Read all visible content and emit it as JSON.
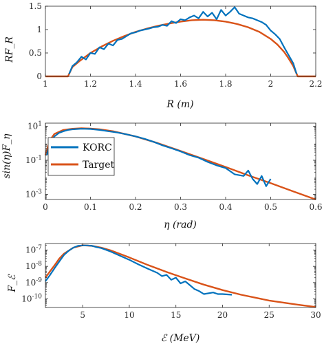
{
  "colors": {
    "korc": "#0072BD",
    "target": "#D95319",
    "axis": "#262626"
  },
  "chart_data": [
    {
      "type": "line",
      "ylabel": "RF_R",
      "xlabel": "R (m)",
      "xlim": [
        1,
        2.2
      ],
      "ylim": [
        0,
        1.5
      ],
      "yscale": "linear",
      "xticks": [
        "1",
        "1.2",
        "1.4",
        "1.6",
        "1.8",
        "2",
        "2.2"
      ],
      "yticks": [
        "0",
        "0.5",
        "1",
        "1.5"
      ],
      "series": [
        {
          "name": "KORC",
          "x": [
            1.105,
            1.12,
            1.14,
            1.16,
            1.18,
            1.2,
            1.22,
            1.24,
            1.26,
            1.28,
            1.3,
            1.32,
            1.34,
            1.36,
            1.38,
            1.4,
            1.42,
            1.44,
            1.46,
            1.48,
            1.5,
            1.52,
            1.54,
            1.56,
            1.58,
            1.6,
            1.62,
            1.64,
            1.66,
            1.68,
            1.7,
            1.72,
            1.74,
            1.76,
            1.78,
            1.8,
            1.82,
            1.84,
            1.86,
            1.88,
            1.9,
            1.92,
            1.94,
            1.96,
            1.98,
            2.0,
            2.02,
            2.04,
            2.06,
            2.08,
            2.1,
            2.115
          ],
          "y": [
            0.05,
            0.22,
            0.3,
            0.42,
            0.36,
            0.5,
            0.48,
            0.62,
            0.58,
            0.7,
            0.66,
            0.78,
            0.8,
            0.86,
            0.92,
            0.94,
            0.98,
            1.0,
            1.02,
            1.05,
            1.06,
            1.1,
            1.08,
            1.18,
            1.14,
            1.22,
            1.2,
            1.26,
            1.3,
            1.24,
            1.38,
            1.28,
            1.36,
            1.22,
            1.42,
            1.3,
            1.38,
            1.48,
            1.34,
            1.3,
            1.26,
            1.24,
            1.2,
            1.16,
            1.1,
            0.98,
            0.9,
            0.8,
            0.62,
            0.45,
            0.28,
            0.05
          ]
        },
        {
          "name": "Target",
          "x": [
            1.0,
            1.1,
            1.11,
            1.12,
            1.15,
            1.2,
            1.25,
            1.3,
            1.35,
            1.4,
            1.45,
            1.5,
            1.55,
            1.6,
            1.65,
            1.7,
            1.75,
            1.8,
            1.85,
            1.9,
            1.95,
            2.0,
            2.03,
            2.06,
            2.08,
            2.1,
            2.12,
            2.2
          ],
          "y": [
            0,
            0,
            0.1,
            0.2,
            0.32,
            0.5,
            0.64,
            0.76,
            0.86,
            0.95,
            1.02,
            1.08,
            1.13,
            1.17,
            1.2,
            1.21,
            1.2,
            1.17,
            1.12,
            1.05,
            0.95,
            0.8,
            0.68,
            0.52,
            0.38,
            0.22,
            0,
            0
          ]
        }
      ]
    },
    {
      "type": "line",
      "ylabel": "sin(η)F_η",
      "xlabel": "η (rad)",
      "xlim": [
        0,
        0.6
      ],
      "ylim": [
        0.0005,
        15
      ],
      "yscale": "log",
      "legend": "top-left",
      "xticks": [
        "0",
        "0.1",
        "0.2",
        "0.3",
        "0.4",
        "0.5",
        "0.6"
      ],
      "yticks": [
        "10^1",
        "10^-1",
        "10^-3"
      ],
      "series": [
        {
          "name": "KORC",
          "x": [
            0.003,
            0.01,
            0.02,
            0.03,
            0.04,
            0.05,
            0.06,
            0.08,
            0.1,
            0.12,
            0.14,
            0.16,
            0.18,
            0.2,
            0.22,
            0.24,
            0.26,
            0.28,
            0.3,
            0.32,
            0.34,
            0.36,
            0.38,
            0.4,
            0.42,
            0.44,
            0.45,
            0.46,
            0.47,
            0.48,
            0.49,
            0.5
          ],
          "y": [
            0.2,
            1.0,
            2.5,
            4.0,
            5.0,
            6.0,
            6.5,
            7.0,
            6.8,
            6.0,
            5.0,
            4.2,
            3.3,
            2.5,
            1.8,
            1.2,
            0.75,
            0.5,
            0.33,
            0.2,
            0.14,
            0.08,
            0.05,
            0.035,
            0.015,
            0.012,
            0.025,
            0.008,
            0.004,
            0.012,
            0.003,
            0.008
          ]
        },
        {
          "name": "Target",
          "x": [
            0.0,
            0.01,
            0.02,
            0.04,
            0.06,
            0.08,
            0.1,
            0.12,
            0.15,
            0.2,
            0.25,
            0.3,
            0.35,
            0.4,
            0.45,
            0.5,
            0.55,
            0.6
          ],
          "y": [
            0.2,
            1.5,
            3.5,
            6.0,
            7.0,
            7.5,
            7.2,
            6.5,
            5.0,
            2.5,
            1.0,
            0.35,
            0.12,
            0.04,
            0.013,
            0.0045,
            0.0015,
            0.0005
          ]
        }
      ]
    },
    {
      "type": "line",
      "ylabel": "F_ℰ",
      "xlabel": "ℰ (MeV)",
      "xlim": [
        1,
        30
      ],
      "ylim": [
        3e-11,
        2.5e-07
      ],
      "yscale": "log",
      "xticks": [
        "5",
        "10",
        "15",
        "20",
        "25",
        "30"
      ],
      "yticks": [
        "10^-7",
        "10^-8",
        "10^-9",
        "10^-10"
      ],
      "series": [
        {
          "name": "KORC",
          "x": [
            1,
            1.5,
            2,
            2.5,
            3,
            3.5,
            4,
            4.5,
            5,
            5.5,
            6,
            6.5,
            7,
            8,
            9,
            10,
            11,
            12,
            13,
            13.5,
            14,
            14.5,
            15,
            15.5,
            16,
            16.5,
            17,
            17.5,
            18,
            19,
            19.5,
            20,
            21
          ],
          "y": [
            1.2e-09,
            3e-09,
            8e-09,
            2e-08,
            5e-08,
            9e-08,
            1.4e-07,
            1.8e-07,
            1.9e-07,
            1.9e-07,
            1.8e-07,
            1.5e-07,
            1.3e-07,
            8e-08,
            4.5e-08,
            2.5e-08,
            1.3e-08,
            7e-09,
            4e-09,
            2.5e-09,
            3e-09,
            1.5e-09,
            2e-09,
            9e-10,
            1.2e-09,
            7e-10,
            4e-10,
            3e-10,
            2e-10,
            2.5e-10,
            2e-10,
            2e-10,
            1.8e-10
          ]
        },
        {
          "name": "Target",
          "x": [
            1,
            1.5,
            2,
            2.5,
            3,
            4,
            5,
            6,
            7,
            8,
            10,
            12,
            14,
            16,
            18,
            20,
            22,
            25,
            28,
            30
          ],
          "y": [
            2e-09,
            5e-09,
            1.2e-08,
            3e-08,
            6e-08,
            1.4e-07,
            1.95e-07,
            1.8e-07,
            1.4e-07,
            9.5e-08,
            3.5e-08,
            1.2e-08,
            4.5e-09,
            1.8e-09,
            7.5e-10,
            3.5e-10,
            1.8e-10,
            8e-11,
            4.5e-11,
            3.2e-11
          ]
        }
      ]
    }
  ]
}
